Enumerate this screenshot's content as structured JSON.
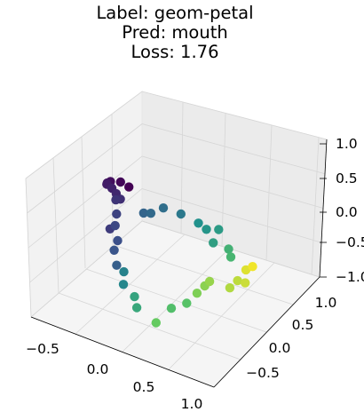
{
  "title_lines": [
    "Label: geom-petal",
    "Pred: mouth",
    "Loss: 1.76"
  ],
  "chart_data": {
    "type": "scatter3d",
    "title": "Label: geom-petal\nPred: mouth\nLoss: 1.76",
    "colormap": "viridis",
    "grid": true,
    "x_ticks": [
      "−0.5",
      "0.0",
      "0.5",
      "1.0"
    ],
    "y_ticks": [
      "−0.5",
      "0.0",
      "0.5",
      "1.0"
    ],
    "z_ticks": [
      "−1.0",
      "−0.5",
      "0.0",
      "0.5",
      "1.0"
    ],
    "xlim": [
      -0.8,
      1.05
    ],
    "ylim": [
      -0.8,
      1.15
    ],
    "zlim": [
      -1.0,
      1.05
    ],
    "points": [
      {
        "x": -0.55,
        "y": 0.55,
        "z": 0.0,
        "c": 0.0
      },
      {
        "x": -0.58,
        "y": 0.45,
        "z": 0.15,
        "c": 0.02
      },
      {
        "x": -0.6,
        "y": 0.3,
        "z": 0.28,
        "c": 0.04
      },
      {
        "x": -0.55,
        "y": 0.15,
        "z": 0.42,
        "c": 0.06
      },
      {
        "x": -0.5,
        "y": 0.05,
        "z": 0.52,
        "c": 0.08
      },
      {
        "x": -0.42,
        "y": 0.0,
        "z": 0.55,
        "c": 0.1
      },
      {
        "x": -0.35,
        "y": -0.05,
        "z": 0.55,
        "c": 0.12
      },
      {
        "x": -0.28,
        "y": -0.1,
        "z": 0.55,
        "c": 0.14
      },
      {
        "x": -0.6,
        "y": 0.4,
        "z": -0.1,
        "c": 0.16
      },
      {
        "x": -0.55,
        "y": 0.2,
        "z": -0.35,
        "c": 0.18
      },
      {
        "x": -0.62,
        "y": 0.45,
        "z": -0.38,
        "c": 0.2
      },
      {
        "x": -0.58,
        "y": 0.35,
        "z": -0.45,
        "c": 0.22
      },
      {
        "x": -0.5,
        "y": 0.25,
        "z": -0.55,
        "c": 0.24
      },
      {
        "x": -0.48,
        "y": 0.15,
        "z": -0.6,
        "c": 0.26
      },
      {
        "x": -0.4,
        "y": 0.05,
        "z": -0.7,
        "c": 0.3
      },
      {
        "x": -0.1,
        "y": 0.0,
        "z": 0.35,
        "c": 0.32
      },
      {
        "x": 0.0,
        "y": -0.05,
        "z": 0.45,
        "c": 0.34
      },
      {
        "x": 0.1,
        "y": 0.0,
        "z": 0.55,
        "c": 0.36
      },
      {
        "x": 0.25,
        "y": 0.05,
        "z": 0.5,
        "c": 0.4
      },
      {
        "x": -0.3,
        "y": 0.0,
        "z": -0.7,
        "c": 0.44
      },
      {
        "x": -0.25,
        "y": -0.1,
        "z": -0.78,
        "c": 0.46
      },
      {
        "x": 0.4,
        "y": 0.1,
        "z": 0.4,
        "c": 0.5
      },
      {
        "x": 0.48,
        "y": 0.1,
        "z": 0.35,
        "c": 0.52
      },
      {
        "x": 0.55,
        "y": 0.2,
        "z": 0.3,
        "c": 0.54
      },
      {
        "x": 0.55,
        "y": 0.1,
        "z": 0.18,
        "c": 0.56
      },
      {
        "x": 0.0,
        "y": -0.35,
        "z": -0.6,
        "c": 0.58
      },
      {
        "x": 0.05,
        "y": -0.4,
        "z": -0.7,
        "c": 0.6
      },
      {
        "x": 0.65,
        "y": 0.2,
        "z": 0.05,
        "c": 0.64
      },
      {
        "x": 0.7,
        "y": 0.15,
        "z": 0.0,
        "c": 0.66
      },
      {
        "x": 0.4,
        "y": -0.4,
        "z": -0.5,
        "c": 0.7
      },
      {
        "x": 0.5,
        "y": -0.3,
        "z": -0.45,
        "c": 0.72
      },
      {
        "x": 0.3,
        "y": -0.5,
        "z": -0.7,
        "c": 0.76
      },
      {
        "x": 0.55,
        "y": -0.2,
        "z": -0.35,
        "c": 0.8
      },
      {
        "x": 0.6,
        "y": -0.15,
        "z": -0.25,
        "c": 0.82
      },
      {
        "x": 0.65,
        "y": -0.15,
        "z": -0.15,
        "c": 0.84
      },
      {
        "x": 0.8,
        "y": -0.05,
        "z": -0.25,
        "c": 0.88
      },
      {
        "x": 0.85,
        "y": 0.0,
        "z": -0.15,
        "c": 0.9
      },
      {
        "x": 0.9,
        "y": 0.05,
        "z": -0.2,
        "c": 0.92
      },
      {
        "x": 0.88,
        "y": 0.1,
        "z": -0.05,
        "c": 0.95
      },
      {
        "x": 0.92,
        "y": 0.15,
        "z": -0.02,
        "c": 0.98
      }
    ]
  }
}
